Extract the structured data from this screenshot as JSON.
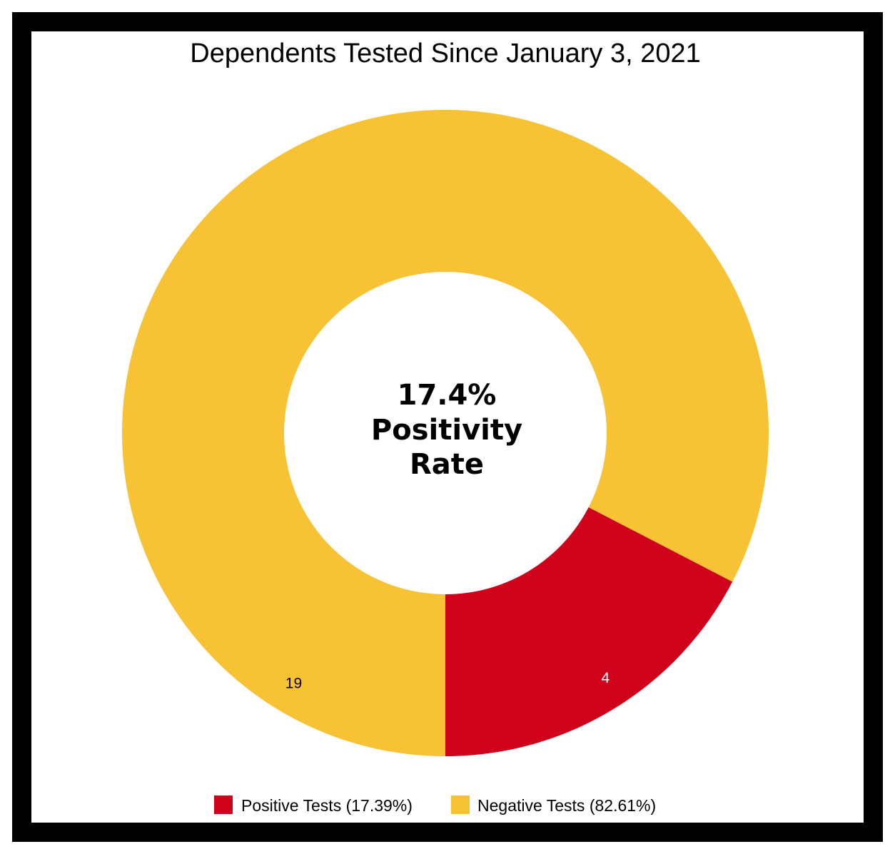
{
  "chart_data": {
    "type": "pie",
    "variant": "donut",
    "title": "Dependents Tested Since January 3, 2021",
    "center_label": [
      "17.4%",
      "Positivity",
      "Rate"
    ],
    "slices": [
      {
        "name": "Positive Tests",
        "value": 4,
        "label": "4",
        "color": "#d0021b",
        "label_color": "#ffffff"
      },
      {
        "name": "Negative Tests",
        "value": 19,
        "label": "19",
        "color": "#f8c235",
        "label_color": "#000000"
      }
    ],
    "legend": {
      "placement": "bottom",
      "entries": [
        "Positive Tests (17.39%)",
        "Negative Tests (82.61%)"
      ]
    }
  }
}
